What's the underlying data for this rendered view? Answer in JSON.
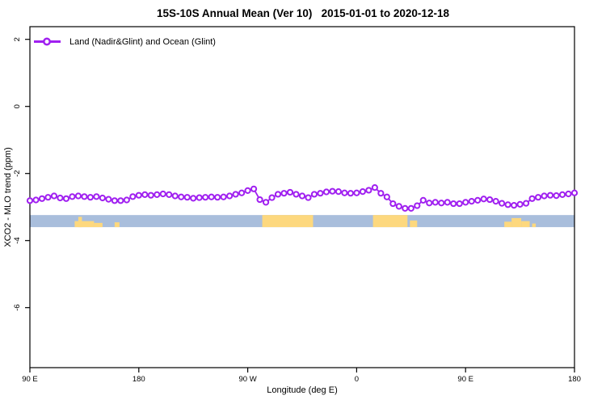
{
  "title": "15S-10S Annual Mean (Ver 10)   2015-01-01 to 2020-12-18",
  "legend": {
    "label": "Land (Nadir&Glint) and Ocean (Glint)"
  },
  "colors": {
    "series": "#A020F0",
    "ocean_strip": "#A9BEDC",
    "land_strip": "#FDD87E",
    "axis": "#000000"
  },
  "chart_data": {
    "type": "line",
    "title": "15S-10S Annual Mean (Ver 10)   2015-01-01 to 2020-12-18",
    "xlabel": "Longitude (deg E)",
    "ylabel": "XCO2 - MLO trend (ppm)",
    "legend_entries": [
      "Land (Nadir&Glint) and Ocean (Glint)"
    ],
    "legend_position": "top-left",
    "grid": false,
    "marker": "open-circle",
    "xlim": [
      90,
      540
    ],
    "ylim": [
      -7.8,
      2.4
    ],
    "x_axis_wraps_globe": "axis spans 90E east through 180, 90W, 0, 90E to 180 (450 deg shown)",
    "x_ticks": [
      {
        "pos": 90,
        "label": "90 E"
      },
      {
        "pos": 180,
        "label": "180"
      },
      {
        "pos": 270,
        "label": "90 W"
      },
      {
        "pos": 360,
        "label": "0"
      },
      {
        "pos": 450,
        "label": "90 E"
      },
      {
        "pos": 540,
        "label": "180"
      }
    ],
    "y_ticks": [
      2,
      0,
      -2,
      -4,
      -6
    ],
    "series": [
      {
        "name": "Land (Nadir&Glint) and Ocean (Glint)",
        "color": "#A020F0",
        "x": [
          90,
          95,
          100,
          105,
          110,
          115,
          120,
          125,
          130,
          135,
          140,
          145,
          150,
          155,
          160,
          165,
          170,
          175,
          180,
          185,
          190,
          195,
          200,
          205,
          210,
          215,
          220,
          225,
          230,
          235,
          240,
          245,
          250,
          255,
          260,
          265,
          270,
          275,
          280,
          285,
          290,
          295,
          300,
          305,
          310,
          315,
          320,
          325,
          330,
          335,
          340,
          345,
          350,
          355,
          360,
          365,
          370,
          375,
          380,
          385,
          390,
          395,
          400,
          405,
          410,
          415,
          420,
          425,
          430,
          435,
          440,
          445,
          450,
          455,
          460,
          465,
          470,
          475,
          480,
          485,
          490,
          495,
          500,
          505,
          510,
          515,
          520,
          525,
          530,
          535,
          540
        ],
        "y": [
          -2.81,
          -2.79,
          -2.75,
          -2.71,
          -2.67,
          -2.73,
          -2.75,
          -2.69,
          -2.67,
          -2.69,
          -2.71,
          -2.69,
          -2.73,
          -2.77,
          -2.81,
          -2.81,
          -2.79,
          -2.69,
          -2.65,
          -2.63,
          -2.65,
          -2.63,
          -2.61,
          -2.63,
          -2.67,
          -2.7,
          -2.71,
          -2.74,
          -2.72,
          -2.71,
          -2.7,
          -2.71,
          -2.7,
          -2.67,
          -2.62,
          -2.58,
          -2.51,
          -2.46,
          -2.78,
          -2.86,
          -2.72,
          -2.62,
          -2.59,
          -2.56,
          -2.62,
          -2.67,
          -2.72,
          -2.62,
          -2.59,
          -2.55,
          -2.53,
          -2.54,
          -2.58,
          -2.59,
          -2.58,
          -2.54,
          -2.5,
          -2.42,
          -2.59,
          -2.7,
          -2.9,
          -2.98,
          -3.04,
          -3.04,
          -2.96,
          -2.8,
          -2.88,
          -2.86,
          -2.88,
          -2.86,
          -2.9,
          -2.9,
          -2.86,
          -2.83,
          -2.8,
          -2.76,
          -2.78,
          -2.83,
          -2.89,
          -2.93,
          -2.95,
          -2.92,
          -2.89,
          -2.75,
          -2.71,
          -2.67,
          -2.65,
          -2.66,
          -2.63,
          -2.61,
          -2.58
        ]
      }
    ],
    "map_strip": {
      "description": "geography band along 15S-10S drawn inside plot",
      "value_top": -3.24,
      "value_bottom": -3.6,
      "ocean_color": "#A9BEDC",
      "land_color": "#FDD87E",
      "ocean_extent": [
        90,
        540
      ],
      "land_segments": [
        {
          "from": 127,
          "to": 143,
          "frac": 0.5
        },
        {
          "from": 130,
          "to": 133,
          "frac": 0.85
        },
        {
          "from": 143,
          "to": 150,
          "frac": 0.35
        },
        {
          "from": 160,
          "to": 164,
          "frac": 0.4
        },
        {
          "from": 282,
          "to": 324,
          "frac": 1.0
        },
        {
          "from": 373.5,
          "to": 402,
          "frac": 1.0
        },
        {
          "from": 404,
          "to": 410,
          "frac": 0.55
        },
        {
          "from": 482,
          "to": 488,
          "frac": 0.45
        },
        {
          "from": 488,
          "to": 496,
          "frac": 0.75
        },
        {
          "from": 496,
          "to": 503,
          "frac": 0.5
        },
        {
          "from": 505,
          "to": 508,
          "frac": 0.3
        }
      ]
    }
  }
}
